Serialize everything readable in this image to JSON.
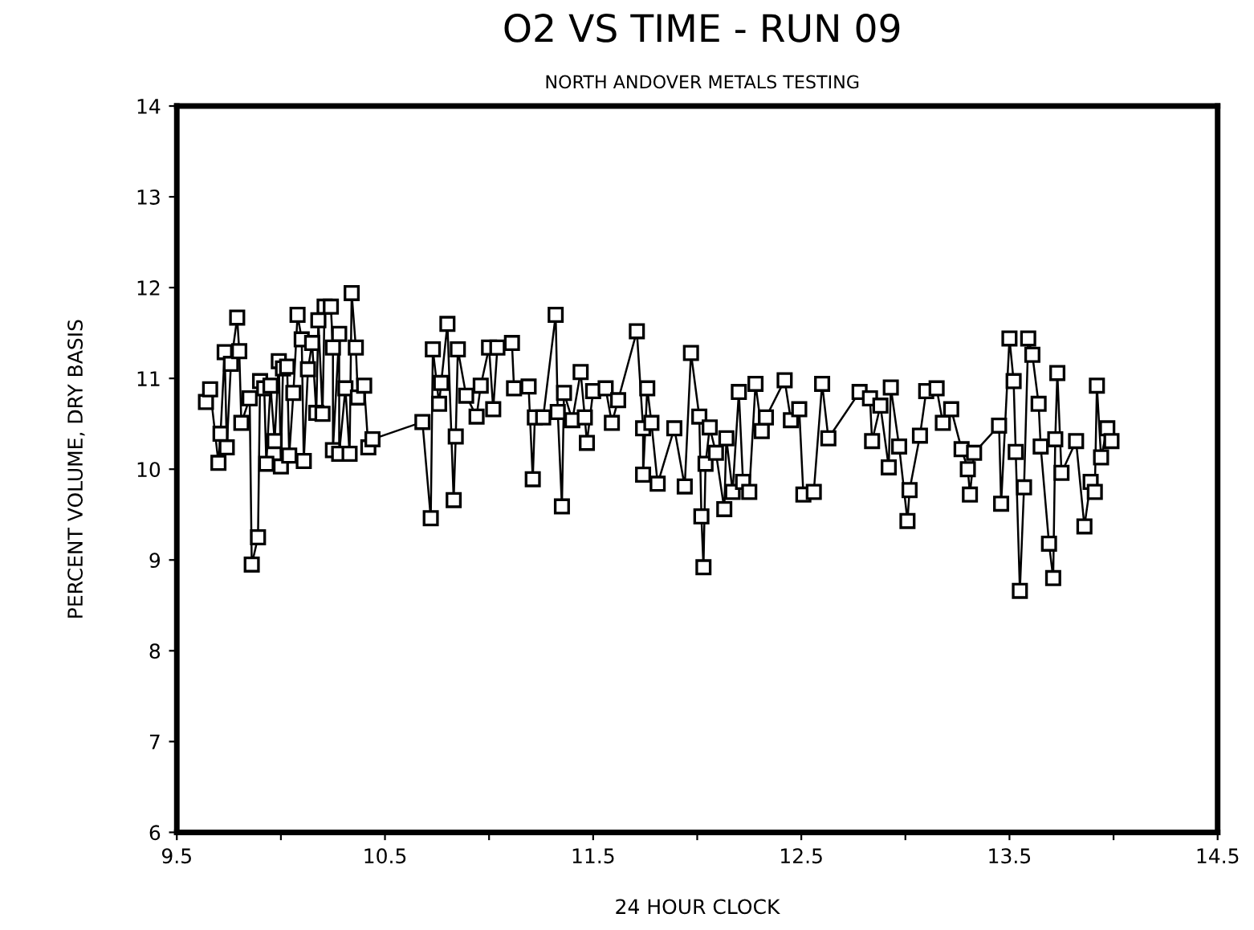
{
  "chart_data": {
    "type": "line",
    "title": "O2 VS TIME - RUN 09",
    "subtitle": "NORTH ANDOVER METALS TESTING",
    "xlabel": "24 HOUR CLOCK",
    "ylabel": "PERCENT VOLUME, DRY BASIS",
    "x": [
      9.64,
      9.66,
      9.7,
      9.71,
      9.73,
      9.74,
      9.76,
      9.79,
      9.8,
      9.81,
      9.85,
      9.86,
      9.89,
      9.9,
      9.92,
      9.93,
      9.95,
      9.97,
      9.99,
      10.0,
      10.01,
      10.03,
      10.04,
      10.06,
      10.08,
      10.1,
      10.11,
      10.13,
      10.15,
      10.17,
      10.18,
      10.2,
      10.21,
      10.24,
      10.25,
      10.25,
      10.28,
      10.28,
      10.31,
      10.33,
      10.34,
      10.36,
      10.37,
      10.4,
      10.42,
      10.44,
      10.68,
      10.72,
      10.73,
      10.76,
      10.77,
      10.8,
      10.83,
      10.84,
      10.85,
      10.89,
      10.94,
      10.96,
      11.0,
      11.02,
      11.04,
      11.11,
      11.12,
      11.19,
      11.21,
      11.22,
      11.26,
      11.32,
      11.33,
      11.35,
      11.36,
      11.4,
      11.44,
      11.46,
      11.47,
      11.5,
      11.56,
      11.59,
      11.62,
      11.71,
      11.74,
      11.74,
      11.76,
      11.78,
      11.81,
      11.89,
      11.94,
      11.97,
      12.01,
      12.02,
      12.03,
      12.04,
      12.06,
      12.09,
      12.13,
      12.14,
      12.17,
      12.2,
      12.22,
      12.25,
      12.28,
      12.31,
      12.33,
      12.42,
      12.45,
      12.49,
      12.51,
      12.56,
      12.6,
      12.63,
      12.78,
      12.83,
      12.84,
      12.88,
      12.92,
      12.93,
      12.97,
      13.01,
      13.02,
      13.07,
      13.1,
      13.15,
      13.18,
      13.22,
      13.27,
      13.3,
      13.31,
      13.33,
      13.45,
      13.46,
      13.5,
      13.52,
      13.53,
      13.55,
      13.57,
      13.59,
      13.61,
      13.64,
      13.65,
      13.69,
      13.71,
      13.72,
      13.73,
      13.75,
      13.82,
      13.86,
      13.89,
      13.91,
      13.92,
      13.94,
      13.97,
      13.99
    ],
    "series": [
      {
        "color": "#000000",
        "values": [
          10.74,
          10.88,
          10.07,
          10.39,
          11.29,
          10.24,
          11.16,
          11.67,
          11.3,
          10.51,
          10.78,
          8.95,
          9.25,
          10.97,
          10.89,
          10.06,
          10.92,
          10.31,
          11.19,
          10.03,
          11.11,
          11.13,
          10.15,
          10.84,
          11.7,
          11.43,
          10.09,
          11.1,
          11.39,
          10.62,
          11.64,
          10.61,
          11.79,
          11.79,
          11.34,
          10.21,
          11.49,
          10.17,
          10.89,
          10.17,
          11.94,
          11.34,
          10.79,
          10.92,
          10.24,
          10.33,
          10.52,
          9.46,
          11.32,
          10.72,
          10.95,
          11.6,
          9.66,
          10.36,
          11.32,
          10.81,
          10.58,
          10.92,
          11.34,
          10.66,
          11.34,
          11.39,
          10.89,
          10.91,
          9.89,
          10.57,
          10.57,
          11.7,
          10.63,
          9.59,
          10.84,
          10.54,
          11.07,
          10.57,
          10.29,
          10.86,
          10.89,
          10.51,
          10.76,
          11.52,
          10.45,
          9.94,
          10.89,
          10.51,
          9.84,
          10.45,
          9.81,
          11.28,
          10.58,
          9.48,
          8.92,
          10.06,
          10.46,
          10.18,
          9.56,
          10.34,
          9.75,
          10.85,
          9.86,
          9.75,
          10.94,
          10.42,
          10.57,
          10.98,
          10.54,
          10.66,
          9.72,
          9.75,
          10.94,
          10.34,
          10.85,
          10.78,
          10.31,
          10.7,
          10.02,
          10.9,
          10.25,
          9.43,
          9.77,
          10.37,
          10.86,
          10.89,
          10.51,
          10.66,
          10.22,
          10.0,
          9.72,
          10.18,
          10.48,
          9.62,
          11.44,
          10.97,
          10.19,
          8.66,
          9.8,
          11.44,
          11.26,
          10.72,
          10.25,
          9.18,
          8.8,
          10.33,
          11.06,
          9.96,
          10.31,
          9.37,
          9.86,
          9.75,
          10.92,
          10.13,
          10.45,
          10.31
        ]
      }
    ],
    "marker": "square",
    "line_style": "solid",
    "xlim": [
      9.5,
      14.5
    ],
    "ylim": [
      6,
      14
    ],
    "xticks": [
      9.5,
      {
        "value": 10,
        "label": null
      },
      10.5,
      {
        "value": 11,
        "label": null
      },
      11.5,
      {
        "value": 12,
        "label": null
      },
      12.5,
      {
        "value": 13,
        "label": null
      },
      13.5,
      {
        "value": 14,
        "label": null
      },
      14.5
    ],
    "yticks": [
      6,
      7,
      8,
      9,
      10,
      11,
      12,
      13,
      14
    ],
    "grid": false
  }
}
